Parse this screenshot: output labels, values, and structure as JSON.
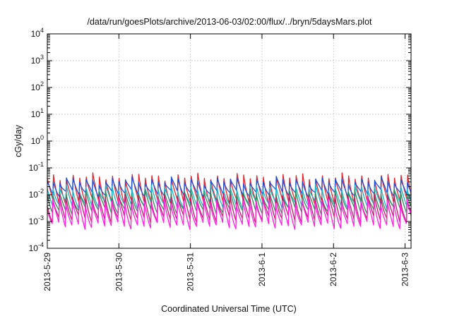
{
  "chart_data": {
    "type": "line",
    "title": "/data/run/goesPlots/archive/2013-06-03/02:00/flux/../bryn/5daysMars.plot",
    "xlabel": "Coordinated Universal Time (UTC)",
    "ylabel": "cGy/day",
    "yscale": "log",
    "ylim": [
      0.0001,
      10000
    ],
    "xlim": [
      "2013-05-29 00:00",
      "2013-06-03 02:00"
    ],
    "grid": true,
    "x_ticks": [
      "2013-5-29",
      "2013-5-30",
      "2013-5-31",
      "2013-6-1",
      "2013-6-2",
      "2013-6-3"
    ],
    "y_ticks": [
      {
        "base": "10",
        "exp": "-4"
      },
      {
        "base": "10",
        "exp": "-3"
      },
      {
        "base": "10",
        "exp": "-2"
      },
      {
        "base": "10",
        "exp": "-1"
      },
      {
        "base": "10",
        "exp": "0"
      },
      {
        "base": "10",
        "exp": "1"
      },
      {
        "base": "10",
        "exp": "2"
      },
      {
        "base": "10",
        "exp": "3"
      },
      {
        "base": "10",
        "exp": "4"
      }
    ],
    "sawtooth_period_hours": 2.2,
    "series": [
      {
        "color": "#e8232a",
        "peak": 0.05,
        "trough": 0.005
      },
      {
        "color": "#1f4fd8",
        "peak": 0.035,
        "trough": 0.011
      },
      {
        "color": "#19b3c8",
        "peak": 0.018,
        "trough": 0.004
      },
      {
        "color": "#2e8b57",
        "peak": 0.012,
        "trough": 0.0025
      },
      {
        "color": "#c2186b",
        "peak": 0.009,
        "trough": 0.0012
      },
      {
        "color": "#ff1fe0",
        "peak": 0.006,
        "trough": 0.0007
      }
    ]
  }
}
